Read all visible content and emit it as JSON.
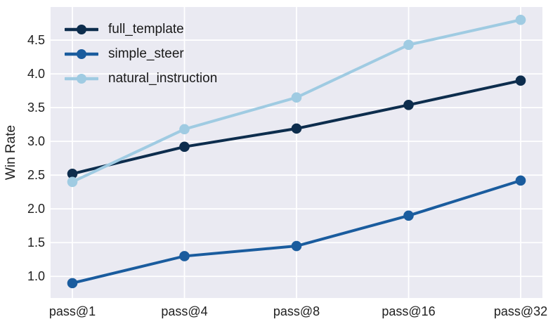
{
  "chart_data": {
    "type": "line",
    "categories": [
      "pass@1",
      "pass@4",
      "pass@8",
      "pass@16",
      "pass@32"
    ],
    "series": [
      {
        "name": "full_template",
        "color": "#0d2d4d",
        "values": [
          2.52,
          2.92,
          3.19,
          3.54,
          3.9
        ]
      },
      {
        "name": "simple_steer",
        "color": "#1a5c9e",
        "values": [
          0.9,
          1.3,
          1.45,
          1.9,
          2.42
        ]
      },
      {
        "name": "natural_instruction",
        "color": "#9fcbe2",
        "values": [
          2.4,
          3.18,
          3.65,
          4.43,
          4.8
        ]
      }
    ],
    "title": "",
    "xlabel": "",
    "ylabel": "Win Rate",
    "ylim": [
      0.68,
      4.99
    ],
    "yticks": [
      1.0,
      1.5,
      2.0,
      2.5,
      3.0,
      3.5,
      4.0,
      4.5
    ],
    "grid": true,
    "legend_position": "upper left",
    "plot_bg_color": "#eaeaf2",
    "grid_color": "#ffffff",
    "text_color": "#202020"
  }
}
